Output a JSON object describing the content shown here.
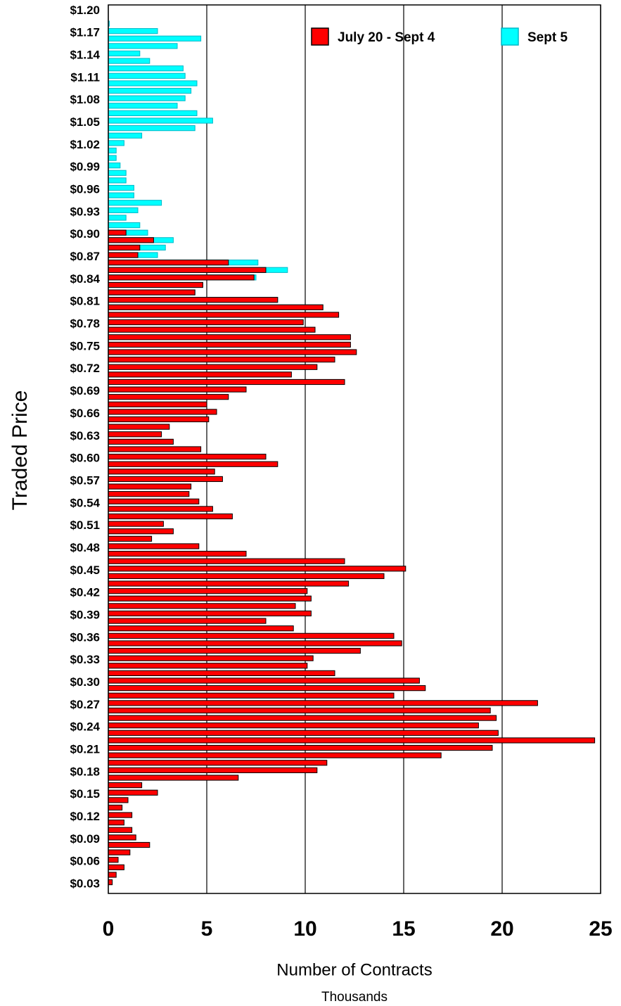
{
  "chart_data": {
    "type": "barh",
    "ylabel": "Traded Price",
    "xlabel": "Number of Contracts",
    "xunit": "Thousands",
    "categories": [
      null,
      "$0.03",
      null,
      null,
      "$0.06",
      null,
      null,
      "$0.09",
      null,
      null,
      "$0.12",
      null,
      null,
      "$0.15",
      null,
      null,
      "$0.18",
      null,
      null,
      "$0.21",
      null,
      null,
      "$0.24",
      null,
      null,
      "$0.27",
      null,
      null,
      "$0.30",
      null,
      null,
      "$0.33",
      null,
      null,
      "$0.36",
      null,
      null,
      "$0.39",
      null,
      null,
      "$0.42",
      null,
      null,
      "$0.45",
      null,
      null,
      "$0.48",
      null,
      null,
      "$0.51",
      null,
      null,
      "$0.54",
      null,
      null,
      "$0.57",
      null,
      null,
      "$0.60",
      null,
      null,
      "$0.63",
      null,
      null,
      "$0.66",
      null,
      null,
      "$0.69",
      null,
      null,
      "$0.72",
      null,
      null,
      "$0.75",
      null,
      null,
      "$0.78",
      null,
      null,
      "$0.81",
      null,
      null,
      "$0.84",
      null,
      null,
      "$0.87",
      null,
      null,
      "$0.90",
      null,
      null,
      "$0.93",
      null,
      null,
      "$0.96",
      null,
      null,
      "$0.99",
      null,
      null,
      "$1.02",
      null,
      null,
      "$1.05",
      null,
      null,
      "$1.08",
      null,
      null,
      "$1.11",
      null,
      null,
      "$1.14",
      null,
      null,
      "$1.17",
      null,
      null,
      "$1.20"
    ],
    "series": [
      {
        "name": "Sept 5",
        "color": "#00ffff",
        "stroke": "#00b8c8",
        "values": [
          null,
          null,
          null,
          null,
          null,
          null,
          null,
          null,
          null,
          null,
          null,
          null,
          null,
          null,
          null,
          null,
          null,
          null,
          null,
          null,
          null,
          null,
          null,
          null,
          null,
          null,
          null,
          null,
          null,
          null,
          null,
          null,
          null,
          null,
          null,
          null,
          null,
          null,
          null,
          null,
          null,
          null,
          null,
          null,
          null,
          null,
          null,
          null,
          null,
          null,
          null,
          null,
          null,
          null,
          null,
          null,
          null,
          null,
          null,
          null,
          null,
          null,
          null,
          null,
          null,
          null,
          null,
          null,
          null,
          null,
          null,
          null,
          null,
          null,
          null,
          null,
          null,
          null,
          10.9,
          8.6,
          4.4,
          4.8,
          7.5,
          9.1,
          7.6,
          2.5,
          2.9,
          3.3,
          2.0,
          1.6,
          0.9,
          1.5,
          2.7,
          1.3,
          1.3,
          0.9,
          0.9,
          0.6,
          0.4,
          0.4,
          0.8,
          1.7,
          4.4,
          5.3,
          4.5,
          3.5,
          3.9,
          4.2,
          4.5,
          3.9,
          3.8,
          2.1,
          1.6,
          3.5,
          4.7,
          2.5,
          0.05,
          null,
          null
        ]
      },
      {
        "name": "July 20 - Sept 4",
        "color": "#ff0000",
        "stroke": "#000000",
        "values": [
          null,
          0.2,
          0.4,
          0.8,
          0.5,
          1.1,
          2.1,
          1.4,
          1.2,
          0.8,
          1.2,
          0.7,
          1.0,
          2.5,
          1.7,
          6.6,
          10.6,
          11.1,
          16.9,
          19.5,
          24.7,
          19.8,
          18.8,
          19.7,
          19.4,
          21.8,
          14.5,
          16.1,
          15.8,
          11.5,
          10.1,
          10.4,
          12.8,
          14.9,
          14.5,
          9.4,
          8.0,
          10.3,
          9.5,
          10.3,
          10.1,
          12.2,
          14.0,
          15.1,
          12.0,
          7.0,
          4.6,
          2.2,
          3.3,
          2.8,
          6.3,
          5.3,
          4.6,
          4.1,
          4.2,
          5.8,
          5.4,
          8.6,
          8.0,
          4.7,
          3.3,
          2.7,
          3.1,
          5.1,
          5.5,
          5.0,
          6.1,
          7.0,
          12.0,
          9.3,
          10.6,
          11.5,
          12.6,
          12.3,
          12.3,
          10.5,
          9.9,
          11.7,
          10.9,
          8.6,
          4.4,
          4.8,
          7.4,
          8.0,
          6.1,
          1.5,
          1.6,
          2.3,
          0.9,
          null,
          null,
          null,
          null,
          null,
          null,
          null,
          null,
          null,
          null,
          null,
          null,
          null,
          null,
          null,
          null,
          null,
          null,
          null,
          null,
          null,
          null,
          null,
          null,
          null,
          null,
          null,
          null,
          null,
          null
        ]
      }
    ],
    "legend_order": [
      1,
      0
    ],
    "xlim": [
      0,
      25
    ],
    "xticks": [
      0,
      5,
      10,
      15,
      20,
      25
    ],
    "grid": true,
    "legend": "upper right"
  }
}
